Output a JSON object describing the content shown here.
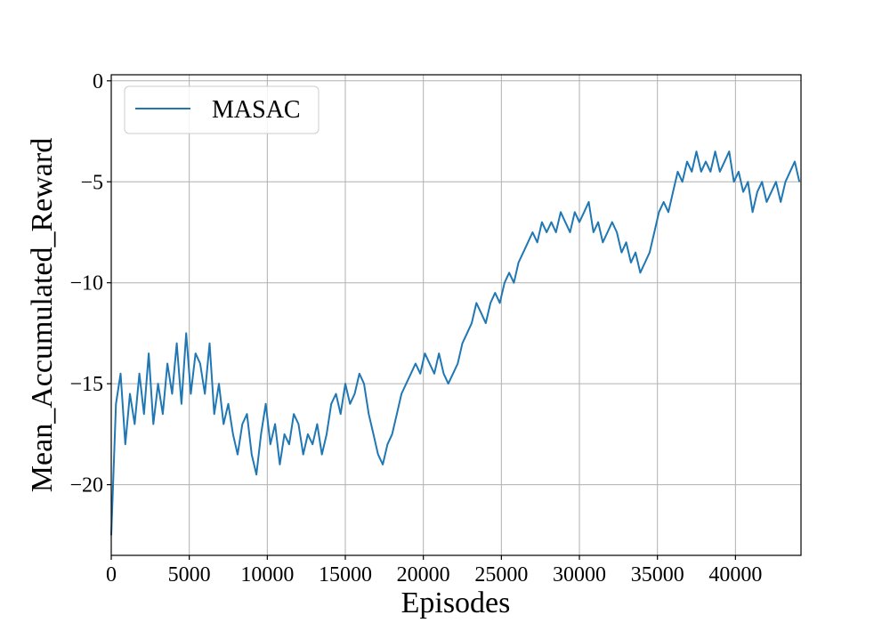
{
  "chart_data": {
    "type": "line",
    "title": "",
    "xlabel": "Episodes",
    "ylabel": "Mean_Accumulated_Reward",
    "xlim": [
      0,
      44200
    ],
    "ylim": [
      -23.5,
      0.3
    ],
    "xticks": [
      0,
      5000,
      10000,
      15000,
      20000,
      25000,
      30000,
      35000,
      40000
    ],
    "xtick_labels": [
      "0",
      "5000",
      "10000",
      "15000",
      "20000",
      "25000",
      "30000",
      "35000",
      "40000"
    ],
    "yticks": [
      0,
      -5,
      -10,
      -15,
      -20
    ],
    "ytick_labels": [
      "0",
      "−5",
      "−10",
      "−15",
      "−20"
    ],
    "grid": true,
    "legend": {
      "position": "top-left",
      "entries": [
        "MASAC"
      ]
    },
    "series": [
      {
        "name": "MASAC",
        "color": "#1f77b4",
        "x": [
          0,
          300,
          600,
          900,
          1200,
          1500,
          1800,
          2100,
          2400,
          2700,
          3000,
          3300,
          3600,
          3900,
          4200,
          4500,
          4800,
          5100,
          5400,
          5700,
          6000,
          6300,
          6600,
          6900,
          7200,
          7500,
          7800,
          8100,
          8400,
          8700,
          9000,
          9300,
          9600,
          9900,
          10200,
          10500,
          10800,
          11100,
          11400,
          11700,
          12000,
          12300,
          12600,
          12900,
          13200,
          13500,
          13800,
          14100,
          14400,
          14700,
          15000,
          15300,
          15600,
          15900,
          16200,
          16500,
          16800,
          17100,
          17400,
          17700,
          18000,
          18300,
          18600,
          18900,
          19200,
          19500,
          19800,
          20100,
          20400,
          20700,
          21000,
          21300,
          21600,
          21900,
          22200,
          22500,
          22800,
          23100,
          23400,
          23700,
          24000,
          24300,
          24600,
          24900,
          25200,
          25500,
          25800,
          26100,
          26400,
          26700,
          27000,
          27300,
          27600,
          27900,
          28200,
          28500,
          28800,
          29100,
          29400,
          29700,
          30000,
          30300,
          30600,
          30900,
          31200,
          31500,
          31800,
          32100,
          32400,
          32700,
          33000,
          33300,
          33600,
          33900,
          34200,
          34500,
          34800,
          35100,
          35400,
          35700,
          36000,
          36300,
          36600,
          36900,
          37200,
          37500,
          37800,
          38100,
          38400,
          38700,
          39000,
          39300,
          39600,
          39900,
          40200,
          40500,
          40800,
          41100,
          41400,
          41700,
          42000,
          42300,
          42600,
          42900,
          43200,
          43500,
          43800,
          44100
        ],
        "y": [
          -22.5,
          -16.0,
          -14.5,
          -18.0,
          -15.5,
          -17.0,
          -14.5,
          -16.5,
          -13.5,
          -17.0,
          -15.0,
          -16.5,
          -14.0,
          -15.5,
          -13.0,
          -16.0,
          -12.5,
          -15.5,
          -13.5,
          -14.0,
          -15.5,
          -13.0,
          -16.5,
          -15.0,
          -17.0,
          -16.0,
          -17.5,
          -18.5,
          -17.0,
          -16.5,
          -18.5,
          -19.5,
          -17.5,
          -16.0,
          -18.0,
          -17.0,
          -19.0,
          -17.5,
          -18.0,
          -16.5,
          -17.0,
          -18.5,
          -17.5,
          -18.0,
          -17.0,
          -18.5,
          -17.5,
          -16.0,
          -15.5,
          -16.5,
          -15.0,
          -16.0,
          -15.5,
          -14.5,
          -15.0,
          -16.5,
          -17.5,
          -18.5,
          -19.0,
          -18.0,
          -17.5,
          -16.5,
          -15.5,
          -15.0,
          -14.5,
          -14.0,
          -14.5,
          -13.5,
          -14.0,
          -14.5,
          -13.5,
          -14.5,
          -15.0,
          -14.5,
          -14.0,
          -13.0,
          -12.5,
          -12.0,
          -11.0,
          -11.5,
          -12.0,
          -11.0,
          -10.5,
          -11.0,
          -10.0,
          -9.5,
          -10.0,
          -9.0,
          -8.5,
          -8.0,
          -7.5,
          -8.0,
          -7.0,
          -7.5,
          -7.0,
          -7.5,
          -6.5,
          -7.0,
          -7.5,
          -6.5,
          -7.0,
          -6.5,
          -6.0,
          -7.5,
          -7.0,
          -8.0,
          -7.5,
          -7.0,
          -7.5,
          -8.5,
          -8.0,
          -9.0,
          -8.5,
          -9.5,
          -9.0,
          -8.5,
          -7.5,
          -6.5,
          -6.0,
          -6.5,
          -5.5,
          -4.5,
          -5.0,
          -4.0,
          -4.5,
          -3.5,
          -4.5,
          -4.0,
          -4.5,
          -3.5,
          -4.5,
          -4.0,
          -3.5,
          -5.0,
          -4.5,
          -5.5,
          -5.0,
          -6.5,
          -5.5,
          -5.0,
          -6.0,
          -5.5,
          -5.0,
          -6.0,
          -5.0,
          -4.5,
          -4.0,
          -5.0
        ]
      }
    ]
  }
}
